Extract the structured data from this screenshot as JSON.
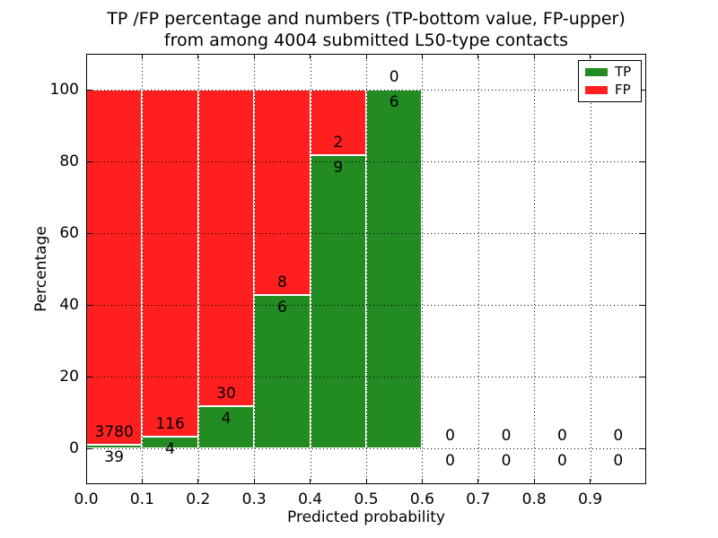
{
  "chart_data": {
    "type": "bar",
    "stacked": true,
    "title_lines": [
      "TP /FP percentage and numbers (TP-bottom value, FP-upper)",
      "from among 4004 submitted L50-type contacts"
    ],
    "xlabel": "Predicted probability",
    "ylabel": "Percentage",
    "xlim": [
      0.0,
      1.0
    ],
    "ylim": [
      -10,
      110
    ],
    "bin_width": 0.1,
    "x_bins": [
      0.0,
      0.1,
      0.2,
      0.3,
      0.4,
      0.5,
      0.6,
      0.7,
      0.8,
      0.9
    ],
    "categories": [
      "0.0-0.1",
      "0.1-0.2",
      "0.2-0.3",
      "0.3-0.4",
      "0.4-0.5",
      "0.5-0.6",
      "0.6-0.7",
      "0.7-0.8",
      "0.8-0.9",
      "0.9-1.0"
    ],
    "series": [
      {
        "name": "TP",
        "color": "#228B22",
        "values": [
          39,
          4,
          4,
          6,
          9,
          6,
          0,
          0,
          0,
          0
        ]
      },
      {
        "name": "FP",
        "color": "#FF1F1F",
        "values": [
          3780,
          116,
          30,
          8,
          2,
          0,
          0,
          0,
          0,
          0
        ]
      }
    ],
    "tp_percent_by_bin": [
      1.02,
      3.33,
      11.76,
      42.86,
      81.82,
      100.0,
      0,
      0,
      0,
      0
    ],
    "xticks": [
      0.0,
      0.1,
      0.2,
      0.3,
      0.4,
      0.5,
      0.6,
      0.7,
      0.8,
      0.9
    ],
    "xtick_labels": [
      "0.0",
      "0.1",
      "0.2",
      "0.3",
      "0.4",
      "0.5",
      "0.6",
      "0.7",
      "0.8",
      "0.9"
    ],
    "yticks": [
      0,
      20,
      40,
      60,
      80,
      100
    ],
    "ytick_labels": [
      "0",
      "20",
      "40",
      "60",
      "80",
      "100"
    ],
    "grid": true,
    "legend_position": "upper right",
    "axis_color": "#000000",
    "bar_edge_color": "#ffffff",
    "background_color": "#ffffff"
  }
}
